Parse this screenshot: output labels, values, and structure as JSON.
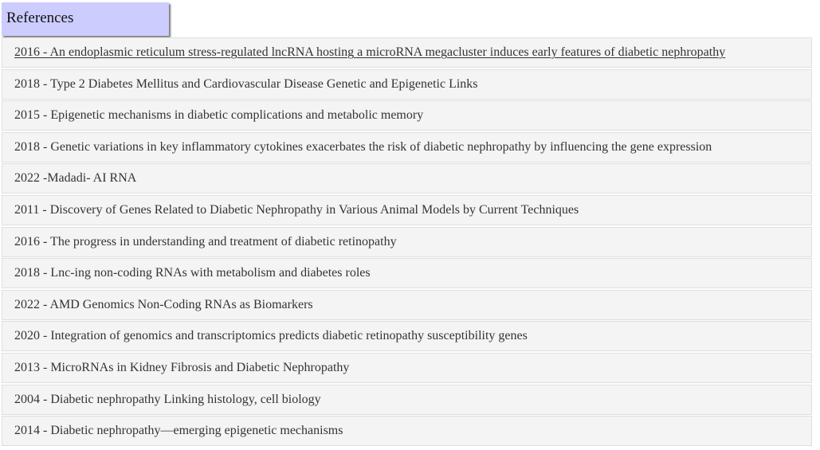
{
  "header": {
    "title": "References"
  },
  "references": [
    "2016 - An endoplasmic reticulum stress-regulated lncRNA hosting a microRNA megacluster induces early features of diabetic nephropathy",
    "2018 - Type 2 Diabetes Mellitus and Cardiovascular Disease Genetic and Epigenetic Links",
    "2015 - Epigenetic mechanisms in diabetic complications and metabolic memory",
    "2018 - Genetic variations in key inflammatory cytokines exacerbates the risk of diabetic nephropathy by influencing the gene expression",
    "2022 -Madadi- AI RNA",
    "2011 - Discovery of Genes Related to Diabetic Nephropathy in Various Animal Models by Current Techniques",
    "2016 - The progress in understanding and treatment of diabetic retinopathy",
    "2018 - Lnc-ing non-coding RNAs with metabolism and diabetes roles",
    "2022 - AMD Genomics Non-Coding RNAs as Biomarkers",
    "2020 - Integration of genomics and transcriptomics predicts diabetic retinopathy susceptibility genes",
    "2013 - MicroRNAs in Kidney Fibrosis and Diabetic Nephropathy",
    "2004 - Diabetic nephropathy Linking histology, cell biology",
    "2014 - Diabetic nephropathy—emerging epigenetic mechanisms"
  ]
}
